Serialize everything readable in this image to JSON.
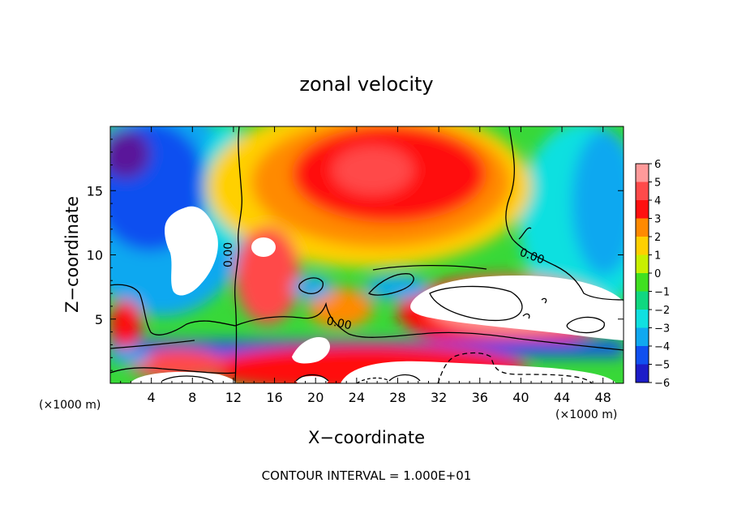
{
  "chart_data": {
    "type": "heatmap",
    "title": "zonal velocity",
    "xlabel": "X−coordinate",
    "ylabel": "Z−coordinate",
    "x_unit_left": "(×1000 m)",
    "x_unit_right": "(×1000 m)",
    "xlim": [
      0,
      50
    ],
    "ylim": [
      0,
      20
    ],
    "x_ticks": [
      4,
      8,
      12,
      16,
      20,
      24,
      28,
      32,
      36,
      40,
      44,
      48
    ],
    "x_tick_labels": [
      "4",
      "8",
      "12",
      "16",
      "20",
      "24",
      "28",
      "32",
      "36",
      "40",
      "44",
      "48"
    ],
    "y_ticks": [
      5,
      10,
      15
    ],
    "y_tick_labels": [
      "5",
      "10",
      "15"
    ],
    "colorbar": {
      "levels": [
        6,
        5,
        4,
        3,
        2,
        1,
        0,
        -1,
        -2,
        -3,
        -4,
        -5,
        -6
      ],
      "labels": [
        "6",
        "5",
        "4",
        "3",
        "2",
        "1",
        "0",
        "−1",
        "−2",
        "−3",
        "−4",
        "−5",
        "−6"
      ],
      "colors": [
        "#ff9a9a",
        "#ff4a4a",
        "#ff1010",
        "#ff8a00",
        "#ffd000",
        "#c8f000",
        "#40e020",
        "#10d880",
        "#10e0e0",
        "#10a8f0",
        "#1050f0",
        "#1c1cc8",
        "#5a189a"
      ]
    },
    "contour_labels": [
      "0.00",
      "0.00",
      "0.00"
    ],
    "footer": "CONTOUR INTERVAL = 1.000E+01"
  }
}
